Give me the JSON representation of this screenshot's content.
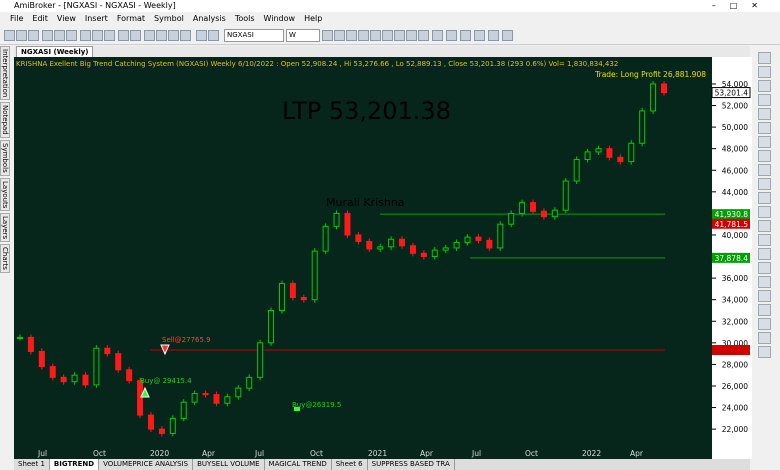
{
  "window": {
    "title": "AmiBroker - [NGXASI - NGXASI - Weekly]"
  },
  "menu": [
    "File",
    "Edit",
    "View",
    "Insert",
    "Format",
    "Symbol",
    "Analysis",
    "Tools",
    "Window",
    "Help"
  ],
  "toolbar": {
    "symbol": "NGXASI",
    "interval": "W"
  },
  "side_tabs": [
    "Interpretation",
    "Notepad",
    "Symbols",
    "Layouts",
    "Layers",
    "Charts"
  ],
  "chart_tab": "NGXASI (Weekly)",
  "info_line": "KRISHNA Exellent Big Trend Catching System (NGXASI) Weekly 6/10/2022 : Open 52,908.24 , Hi 53,276.66 , Lo 52,889.13 , Close 53,201.38 (293 0.6%) Vol= 1,830,834,432",
  "chart_data": {
    "type": "candlestick",
    "closes": [
      30500,
      29200,
      27800,
      26800,
      26400,
      27000,
      26100,
      29500,
      29000,
      27500,
      26500,
      23300,
      22000,
      21600,
      23000,
      24500,
      25300,
      25200,
      24400,
      25000,
      25800,
      26800,
      30000,
      33000,
      35500,
      34200,
      34000,
      38500,
      40800,
      42000,
      40000,
      39400,
      38700,
      38900,
      39600,
      39000,
      38300,
      38000,
      38600,
      38800,
      39300,
      39800,
      39500,
      38800,
      41000,
      42000,
      43000,
      42200,
      41700,
      42300,
      45000,
      47000,
      47700,
      48000,
      47200,
      46800,
      48500,
      51500,
      54000,
      53200
    ],
    "up_color": "#00cc00",
    "down_color": "#ff1a1a",
    "ylim": [
      20250,
      56500
    ],
    "yticks": [
      {
        "value": 22000,
        "label": "22,000"
      },
      {
        "value": 24000,
        "label": "24,000"
      },
      {
        "value": 26000,
        "label": "26,000"
      },
      {
        "value": 28000,
        "label": "28,000"
      },
      {
        "value": 30000,
        "label": "30,000"
      },
      {
        "value": 32000,
        "label": "32,000"
      },
      {
        "value": 34000,
        "label": "34,000"
      },
      {
        "value": 36000,
        "label": "36,000"
      },
      {
        "value": 38000,
        "label": "38,000"
      },
      {
        "value": 40000,
        "label": "40,000"
      },
      {
        "value": 42000,
        "label": "42,000"
      },
      {
        "value": 44000,
        "label": "44,000"
      },
      {
        "value": 46000,
        "label": "46,000"
      },
      {
        "value": 48000,
        "label": "48,000"
      },
      {
        "value": 50000,
        "label": "50,000"
      },
      {
        "value": 52000,
        "label": "52,000"
      },
      {
        "value": 54000,
        "label": "54,000"
      }
    ],
    "levels": [
      {
        "value": 41930.8,
        "label": "41,930.8",
        "color": "#00a000"
      },
      {
        "value": 41781.5,
        "label": "41,781.5",
        "color": "#d00000"
      },
      {
        "value": 37878.4,
        "label": "37,878.4",
        "color": "#00a000"
      }
    ],
    "last": {
      "value": 53201.4,
      "label": "53,201.4"
    },
    "date_labels": [
      "Jul",
      "Oct",
      "2020",
      "Apr",
      "Jul",
      "Oct",
      "2021",
      "Apr",
      "Jul",
      "Oct",
      "2022",
      "Apr"
    ],
    "annotations": {
      "ltp": "LTP 53,201.38",
      "author": "Murali Krishna",
      "trade": "Trade: Long Profit 26,881.908",
      "sell": "Sell@27765.9",
      "buy1": "Buy@ 29415.4",
      "buy2": "Buy@26319.5"
    }
  },
  "sheets": [
    "Sheet 1",
    "BIGTREND",
    "VOLUMEPRICE ANALYSIS",
    "BUYSELL VOLUME",
    "MAGICAL TREND",
    "Sheet 6",
    "SUPPRESS BASED TRA"
  ]
}
